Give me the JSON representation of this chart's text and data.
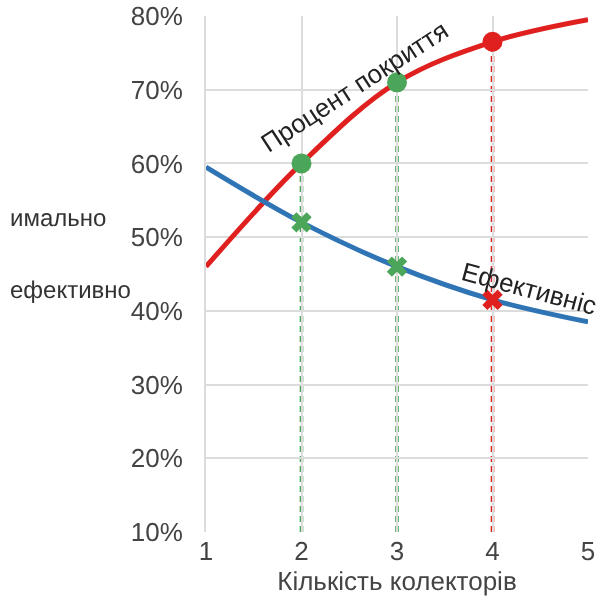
{
  "chart_data": {
    "type": "line",
    "xlabel": "Кількість колекторів",
    "x": [
      1,
      2,
      3,
      4,
      5
    ],
    "xlim": [
      1,
      5
    ],
    "xticks": [
      1,
      2,
      3,
      4,
      5
    ],
    "ylim": [
      10,
      80
    ],
    "yticks": [
      {
        "value": 10,
        "label": "10%"
      },
      {
        "value": 20,
        "label": "20%"
      },
      {
        "value": 30,
        "label": "30%"
      },
      {
        "value": 40,
        "label": "40%"
      },
      {
        "value": 50,
        "label": "50%"
      },
      {
        "value": 60,
        "label": "60%"
      },
      {
        "value": 70,
        "label": "70%"
      },
      {
        "value": 80,
        "label": "80%"
      }
    ],
    "grid": true,
    "legend": false,
    "marker": "none",
    "line_style": "solid",
    "series": [
      {
        "name": "Процент покриття",
        "color": "#e0201f",
        "values": [
          46,
          60,
          71,
          76.5,
          79.5
        ]
      },
      {
        "name": "Ефективніс",
        "color": "#2f74b5",
        "values": [
          59.5,
          52,
          46,
          41.5,
          38.5
        ]
      },
      {
        "type": "lollipop",
        "line_style": "dashed",
        "marker": "circle",
        "color": "#4ca65a",
        "x": [
          2,
          3
        ],
        "values": [
          60,
          71
        ]
      },
      {
        "type": "lollipop",
        "line_style": "dashed",
        "marker": "circle",
        "color": "#e0201f",
        "x": [
          4
        ],
        "values": [
          76.5
        ]
      },
      {
        "type": "scatter",
        "marker": "cross",
        "color": "#4ca65a",
        "x": [
          2,
          3
        ],
        "values": [
          52,
          46
        ]
      },
      {
        "type": "scatter",
        "marker": "cross",
        "color": "#e0201f",
        "x": [
          4
        ],
        "values": [
          41.5
        ]
      }
    ],
    "annotations": [
      "имально",
      "ефективно"
    ]
  }
}
